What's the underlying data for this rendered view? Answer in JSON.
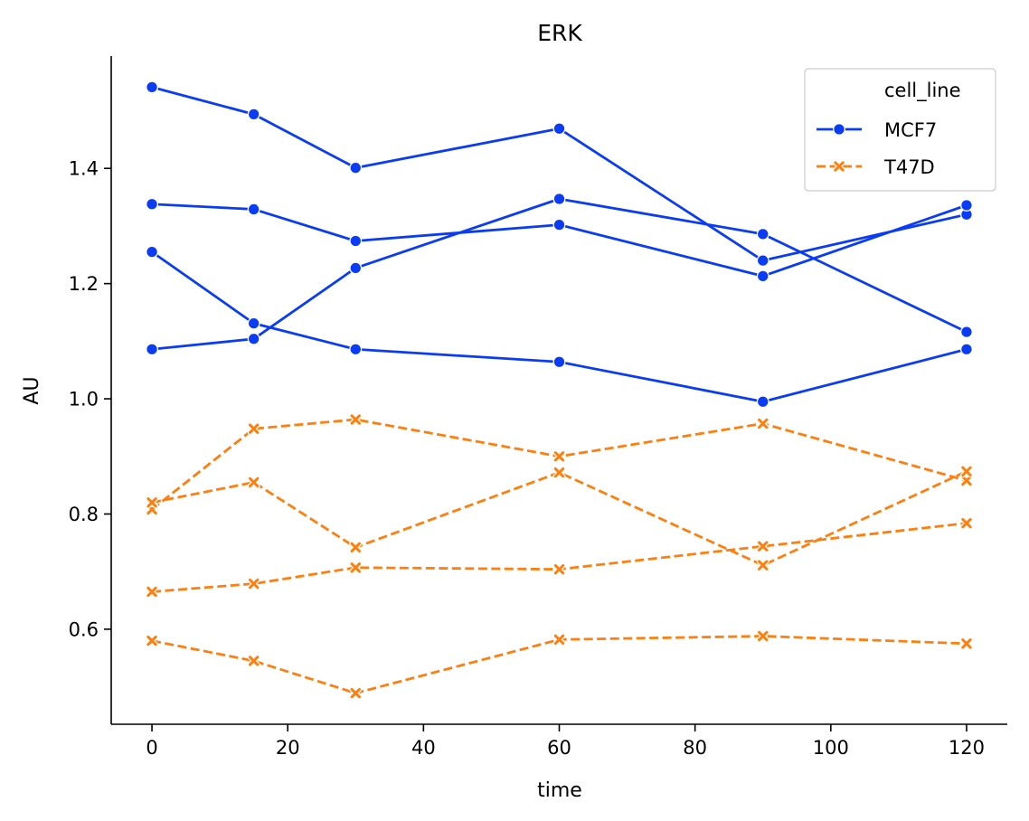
{
  "chart_data": {
    "type": "line",
    "title": "ERK",
    "xlabel": "time",
    "ylabel": "AU",
    "xlim": [
      -6,
      126
    ],
    "ylim": [
      0.435,
      1.595
    ],
    "x_ticks": [
      0,
      20,
      40,
      60,
      80,
      100,
      120
    ],
    "y_ticks": [
      0.6,
      0.8,
      1.0,
      1.2,
      1.4
    ],
    "y_tick_labels": [
      "0.6",
      "0.8",
      "1.0",
      "1.2",
      "1.4"
    ],
    "grid": false,
    "legend": {
      "position": "top-right",
      "title": "cell_line",
      "entries": [
        {
          "name": "MCF7",
          "color": "#0a3cf5",
          "marker": "circle",
          "dash": "solid"
        },
        {
          "name": "T47D",
          "color": "#ff7f0e",
          "marker": "x",
          "dash": "dashed"
        }
      ]
    },
    "x": [
      0,
      15,
      30,
      60,
      90,
      120
    ],
    "series": [
      {
        "group": "MCF7",
        "values": [
          1.541,
          1.494,
          1.401,
          1.469,
          1.24,
          1.32
        ]
      },
      {
        "group": "MCF7",
        "values": [
          1.338,
          1.329,
          1.274,
          1.302,
          1.213,
          1.336
        ]
      },
      {
        "group": "MCF7",
        "values": [
          1.255,
          1.131,
          1.086,
          1.064,
          0.995,
          1.086
        ]
      },
      {
        "group": "MCF7",
        "values": [
          1.086,
          1.104,
          1.227,
          1.347,
          1.286,
          1.116
        ]
      },
      {
        "group": "T47D",
        "values": [
          0.808,
          0.948,
          0.964,
          0.9,
          0.957,
          0.858
        ]
      },
      {
        "group": "T47D",
        "values": [
          0.82,
          0.855,
          0.742,
          0.872,
          0.711,
          0.874
        ]
      },
      {
        "group": "T47D",
        "values": [
          0.665,
          0.679,
          0.707,
          0.704,
          0.744,
          0.784
        ]
      },
      {
        "group": "T47D",
        "values": [
          0.58,
          0.545,
          0.489,
          0.582,
          0.588,
          0.575
        ]
      }
    ]
  }
}
